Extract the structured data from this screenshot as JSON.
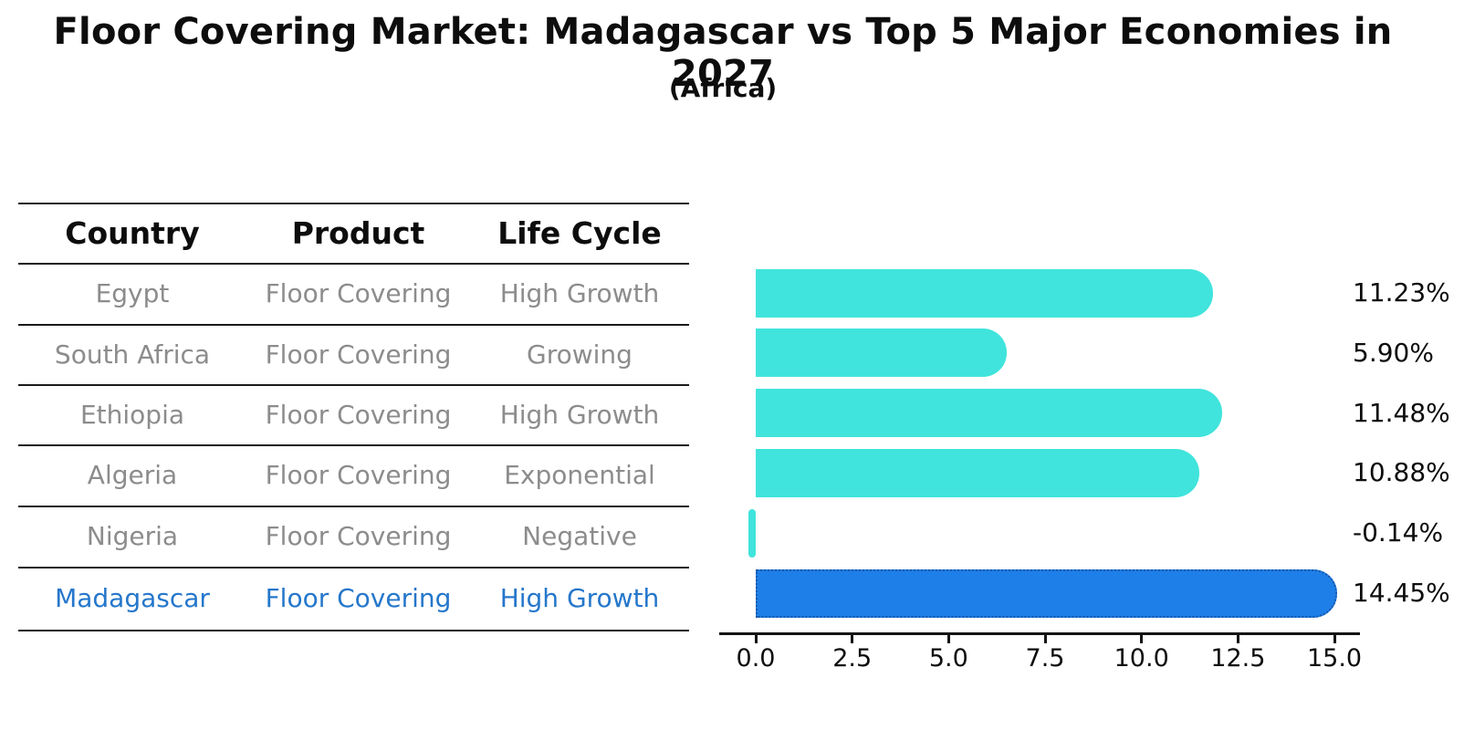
{
  "title": "Floor Covering Market: Madagascar vs Top 5 Major Economies in 2027",
  "subtitle": "(Africa)",
  "table": {
    "headers": [
      "Country",
      "Product",
      "Life Cycle"
    ],
    "rows": [
      {
        "country": "Egypt",
        "product": "Floor Covering",
        "life_cycle": "High Growth",
        "highlight": false
      },
      {
        "country": "South Africa",
        "product": "Floor Covering",
        "life_cycle": "Growing",
        "highlight": false
      },
      {
        "country": "Ethiopia",
        "product": "Floor Covering",
        "life_cycle": "High Growth",
        "highlight": false
      },
      {
        "country": "Algeria",
        "product": "Floor Covering",
        "life_cycle": "Exponential",
        "highlight": false
      },
      {
        "country": "Nigeria",
        "product": "Floor Covering",
        "life_cycle": "Negative",
        "highlight": false
      },
      {
        "country": "Madagascar",
        "product": "Floor Covering",
        "life_cycle": "High Growth",
        "highlight": true
      }
    ]
  },
  "chart_data": {
    "type": "bar",
    "orientation": "horizontal",
    "categories": [
      "Egypt",
      "South Africa",
      "Ethiopia",
      "Algeria",
      "Nigeria",
      "Madagascar"
    ],
    "values": [
      11.23,
      5.9,
      11.48,
      10.88,
      -0.14,
      14.45
    ],
    "value_labels": [
      "11.23%",
      "5.90%",
      "11.48%",
      "10.88%",
      "-0.14%",
      "14.45%"
    ],
    "x_ticks": [
      "0.0",
      "2.5",
      "5.0",
      "7.5",
      "10.0",
      "12.5",
      "15.0"
    ],
    "x_tick_values": [
      0,
      2.5,
      5,
      7.5,
      10,
      12.5,
      15
    ],
    "xlim": [
      0,
      15
    ],
    "grid": false,
    "legend": false,
    "bar_color": "#40E4DC",
    "highlight_color": "#1E7FE8",
    "highlight_border_color": "#1857A8",
    "highlight_index": 5
  },
  "colors": {
    "text_muted": "#8c8c8c",
    "highlight_text": "#2577cb",
    "heading": "#0d0d0d"
  }
}
